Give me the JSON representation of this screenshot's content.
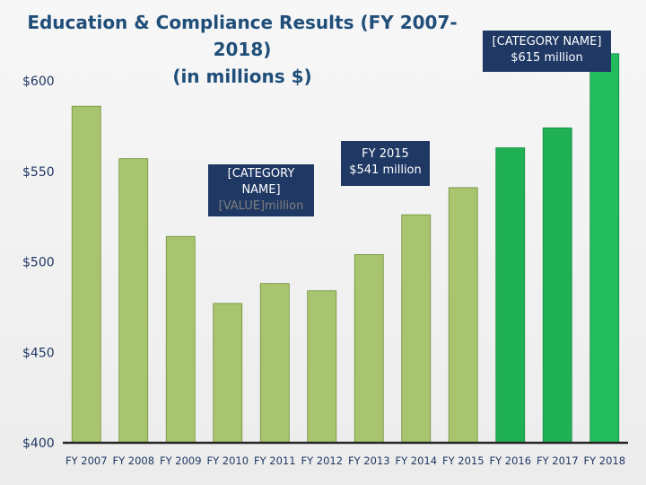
{
  "chart_data": {
    "type": "bar",
    "title": "Education & Compliance Results (FY 2007-2018)",
    "subtitle": "(in millions $)",
    "categories": [
      "FY 2007",
      "FY 2008",
      "FY 2009",
      "FY 2010",
      "FY 2011",
      "FY 2012",
      "FY 2013",
      "FY 2014",
      "FY 2015",
      "FY 2016",
      "FY 2017",
      "FY 2018"
    ],
    "values": [
      586,
      557,
      514,
      477,
      488,
      484,
      504,
      526,
      541,
      563,
      574,
      615
    ],
    "ylim": [
      400,
      600
    ],
    "yticks": [
      600,
      550,
      500,
      450,
      400
    ],
    "ytick_labels": [
      "$600",
      "$550",
      "$500",
      "$450",
      "$400"
    ],
    "xlabel": "",
    "ylabel": "",
    "grid": false,
    "colors": {
      "default_bar": "#a9c46f",
      "highlight_bar": "#1fb154",
      "highlight_bar_last": "#22bb5e",
      "bar_stroke": "#6f8f3a",
      "axis": "#262626",
      "label": "#1f3864"
    },
    "highlight_categories": [
      "FY 2016",
      "FY 2017",
      "FY 2018"
    ],
    "annotations": [
      {
        "category": "FY 2018",
        "line1": "[CATEGORY NAME]",
        "line2": "$615 million"
      },
      {
        "category": "FY 2015",
        "line1": "FY 2015",
        "line2": "$541 million"
      },
      {
        "category": "FY 2010",
        "line1": "[CATEGORY",
        "line2": "NAME]",
        "line3": "[VALUE]million"
      }
    ]
  }
}
